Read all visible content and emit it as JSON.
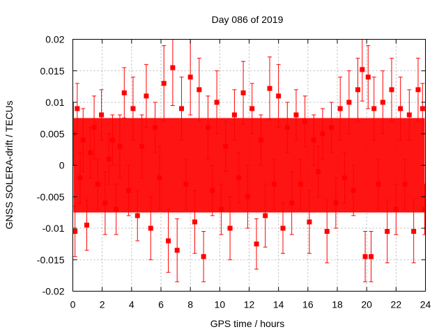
{
  "chart_data": {
    "type": "scatter",
    "title": "Day 086 of 2019",
    "xlabel": "GPS time / hours",
    "ylabel": "GNSS SOLERA-drift / TECUs",
    "xlim": [
      0,
      24
    ],
    "ylim": [
      -0.02,
      0.02
    ],
    "x_ticks": [
      0,
      2,
      4,
      6,
      8,
      10,
      12,
      14,
      16,
      18,
      20,
      22,
      24
    ],
    "y_ticks": [
      -0.02,
      -0.015,
      -0.01,
      -0.005,
      0,
      0.005,
      0.01,
      0.015,
      0.02
    ],
    "x_tick_labels": [
      "0",
      "2",
      "4",
      "6",
      "8",
      "10",
      "12",
      "14",
      "16",
      "18",
      "20",
      "22",
      "24"
    ],
    "y_tick_labels": [
      "-0.02",
      "-0.015",
      "-0.01",
      "-0.005",
      "0",
      "0.005",
      "0.01",
      "0.015",
      "0.02"
    ],
    "grid": true,
    "marker": "square",
    "error_bars": true,
    "series": [
      {
        "name": "SOLERA-drift",
        "color": "#ff0000",
        "x": [
          0.05,
          0.15,
          0.3,
          0.5,
          0.7,
          0.95,
          1.2,
          1.45,
          1.7,
          1.95,
          2.2,
          2.45,
          2.7,
          2.95,
          3.2,
          3.5,
          3.8,
          4.1,
          4.4,
          4.7,
          5.0,
          5.3,
          5.6,
          5.9,
          6.2,
          6.5,
          6.8,
          7.1,
          7.4,
          7.7,
          8.0,
          8.3,
          8.6,
          8.9,
          9.2,
          9.5,
          9.8,
          10.1,
          10.4,
          10.7,
          11.0,
          11.3,
          11.6,
          11.9,
          12.2,
          12.5,
          12.8,
          13.1,
          13.4,
          13.7,
          14.0,
          14.3,
          14.6,
          14.9,
          15.2,
          15.5,
          15.8,
          16.1,
          16.4,
          16.7,
          17.0,
          17.3,
          17.6,
          17.9,
          18.2,
          18.5,
          18.8,
          19.1,
          19.4,
          19.7,
          19.9,
          20.1,
          20.3,
          20.5,
          20.8,
          21.1,
          21.4,
          21.7,
          22.0,
          22.3,
          22.6,
          22.9,
          23.2,
          23.5,
          23.8,
          23.95
        ],
        "y": [
          0.005,
          -0.0105,
          0.009,
          -0.002,
          0.004,
          -0.0095,
          0.002,
          0.006,
          -0.003,
          0.008,
          -0.006,
          0.001,
          0.004,
          -0.007,
          0.003,
          0.0115,
          -0.004,
          0.009,
          -0.008,
          0.003,
          0.011,
          -0.01,
          0.006,
          -0.002,
          0.013,
          -0.012,
          0.0155,
          -0.0135,
          0.009,
          -0.003,
          0.014,
          -0.009,
          0.012,
          -0.0145,
          0.006,
          -0.004,
          0.01,
          -0.007,
          0.003,
          -0.01,
          0.008,
          -0.002,
          0.0115,
          -0.005,
          0.009,
          -0.0125,
          0.004,
          -0.008,
          0.0122,
          -0.003,
          0.011,
          -0.01,
          0.006,
          -0.006,
          0.008,
          -0.003,
          0.007,
          -0.009,
          0.004,
          -0.001,
          0.005,
          -0.0105,
          0.006,
          -0.006,
          0.009,
          -0.002,
          0.01,
          -0.004,
          0.012,
          0.0152,
          -0.0145,
          0.014,
          -0.0145,
          0.009,
          -0.003,
          0.01,
          -0.0105,
          0.012,
          -0.007,
          0.009,
          -0.003,
          0.008,
          -0.0105,
          0.012,
          0.009,
          -0.007
        ],
        "err": [
          0.005,
          0.004,
          0.004,
          0.004,
          0.005,
          0.004,
          0.004,
          0.005,
          0.004,
          0.004,
          0.005,
          0.004,
          0.004,
          0.004,
          0.005,
          0.004,
          0.004,
          0.005,
          0.004,
          0.005,
          0.005,
          0.005,
          0.004,
          0.005,
          0.006,
          0.005,
          0.006,
          0.005,
          0.005,
          0.004,
          0.006,
          0.005,
          0.005,
          0.004,
          0.005,
          0.004,
          0.005,
          0.004,
          0.004,
          0.005,
          0.004,
          0.004,
          0.005,
          0.005,
          0.004,
          0.004,
          0.004,
          0.005,
          0.005,
          0.004,
          0.005,
          0.004,
          0.004,
          0.005,
          0.004,
          0.004,
          0.004,
          0.005,
          0.004,
          0.004,
          0.004,
          0.005,
          0.004,
          0.004,
          0.005,
          0.004,
          0.005,
          0.004,
          0.005,
          0.005,
          0.004,
          0.005,
          0.004,
          0.005,
          0.004,
          0.005,
          0.005,
          0.005,
          0.004,
          0.005,
          0.004,
          0.004,
          0.005,
          0.005,
          0.004,
          0.004
        ]
      }
    ]
  }
}
